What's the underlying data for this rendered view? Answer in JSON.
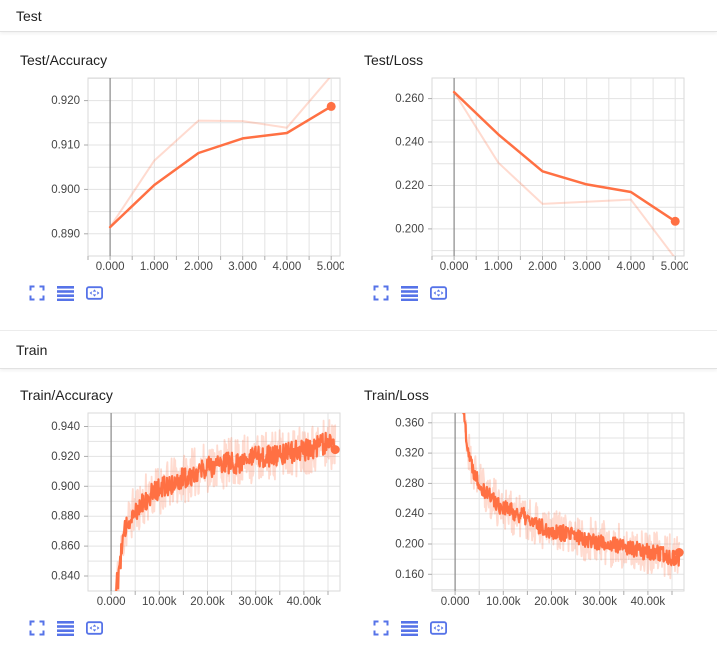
{
  "sections": [
    {
      "label": "Test"
    },
    {
      "label": "Train"
    }
  ],
  "toolbar": {
    "buttons": [
      {
        "icon": "expand-icon"
      },
      {
        "icon": "horizontal-lines-icon"
      },
      {
        "icon": "fit-domain-icon"
      }
    ]
  },
  "colors": {
    "series_orange": "#ff7043",
    "raw_series_opacity": 0.25,
    "icon_blue": "#5673e8",
    "grid": "#e3e3e3",
    "plot_border": "#dadada",
    "zero_line": "#8a8a8a",
    "tick_mark": "#ababab",
    "tick_text": "#454545",
    "title_text": "#212121"
  },
  "chart_data": [
    {
      "id": "test_accuracy",
      "type": "line",
      "title": "Test/Accuracy",
      "xlim": [
        -500,
        5200
      ],
      "ylim": [
        0.885,
        0.9251
      ],
      "x_grid_step": 500,
      "y_grid_step": 0.005,
      "x_ticks": {
        "values": [
          0,
          1000,
          2000,
          3000,
          4000,
          5000
        ],
        "labels": [
          "0.000",
          "1.000",
          "2.000",
          "3.000",
          "4.000",
          "5.000"
        ]
      },
      "y_ticks": {
        "values": [
          0.89,
          0.9,
          0.91,
          0.92
        ],
        "labels": [
          "0.890",
          "0.900",
          "0.910",
          "0.920"
        ]
      },
      "series": [
        {
          "name": "raw",
          "opacity": 0.25,
          "width": 2,
          "points": [
            [
              0,
              0.8915
            ],
            [
              1000,
              0.9065
            ],
            [
              2000,
              0.9155
            ],
            [
              3000,
              0.9154
            ],
            [
              4000,
              0.9139
            ],
            [
              5000,
              0.9256
            ]
          ]
        },
        {
          "name": "smoothed",
          "opacity": 1,
          "width": 2.5,
          "end_marker": true,
          "points": [
            [
              0,
              0.8915
            ],
            [
              1000,
              0.901
            ],
            [
              2000,
              0.9082
            ],
            [
              3000,
              0.9115
            ],
            [
              4000,
              0.9127
            ],
            [
              5000,
              0.9187
            ]
          ]
        }
      ]
    },
    {
      "id": "test_loss",
      "type": "line",
      "title": "Test/Loss",
      "xlim": [
        -500,
        5200
      ],
      "ylim": [
        0.1875,
        0.2695
      ],
      "x_grid_step": 500,
      "y_grid_step": 0.01,
      "x_ticks": {
        "values": [
          0,
          1000,
          2000,
          3000,
          4000,
          5000
        ],
        "labels": [
          "0.000",
          "1.000",
          "2.000",
          "3.000",
          "4.000",
          "5.000"
        ]
      },
      "y_ticks": {
        "values": [
          0.2,
          0.22,
          0.24,
          0.26
        ],
        "labels": [
          "0.200",
          "0.220",
          "0.240",
          "0.260"
        ]
      },
      "series": [
        {
          "name": "raw",
          "opacity": 0.25,
          "width": 2,
          "points": [
            [
              0,
              0.263
            ],
            [
              1000,
              0.2305
            ],
            [
              2000,
              0.2115
            ],
            [
              3000,
              0.2125
            ],
            [
              4000,
              0.2135
            ],
            [
              5000,
              0.1865
            ]
          ]
        },
        {
          "name": "smoothed",
          "opacity": 1,
          "width": 2.5,
          "end_marker": true,
          "points": [
            [
              0,
              0.263
            ],
            [
              1000,
              0.2435
            ],
            [
              2000,
              0.2265
            ],
            [
              3000,
              0.2205
            ],
            [
              4000,
              0.217
            ],
            [
              5000,
              0.2035
            ]
          ]
        }
      ]
    },
    {
      "id": "train_accuracy",
      "type": "line",
      "title": "Train/Accuracy",
      "xlim": [
        -4800,
        47500
      ],
      "ylim": [
        0.83,
        0.949
      ],
      "x_grid_step": 5000,
      "y_grid_step": 0.01,
      "x_ticks": {
        "values": [
          0,
          10000,
          20000,
          30000,
          40000
        ],
        "labels": [
          "0.000",
          "10.00k",
          "20.00k",
          "30.00k",
          "40.00k"
        ]
      },
      "y_ticks": {
        "values": [
          0.84,
          0.86,
          0.88,
          0.9,
          0.92,
          0.94
        ],
        "labels": [
          "0.840",
          "0.860",
          "0.880",
          "0.900",
          "0.920",
          "0.940"
        ]
      },
      "series": [
        {
          "name": "raw",
          "opacity": 0.25,
          "width": 1.8,
          "gen": {
            "x_start": 900,
            "x_end": 46500,
            "n": 420,
            "noise": 0.017,
            "seed": 11,
            "base": [
              [
                900,
                0.83
              ],
              [
                1500,
                0.84
              ],
              [
                2500,
                0.865
              ],
              [
                3500,
                0.877
              ],
              [
                4500,
                0.882
              ],
              [
                6000,
                0.888
              ],
              [
                8000,
                0.894
              ],
              [
                10000,
                0.898
              ],
              [
                12000,
                0.901
              ],
              [
                14000,
                0.904
              ],
              [
                16000,
                0.907
              ],
              [
                18000,
                0.91
              ],
              [
                20000,
                0.913
              ],
              [
                23000,
                0.915
              ],
              [
                26000,
                0.916
              ],
              [
                30000,
                0.919
              ],
              [
                34000,
                0.921
              ],
              [
                38000,
                0.923
              ],
              [
                42000,
                0.926
              ],
              [
                45000,
                0.929
              ],
              [
                46500,
                0.927
              ]
            ]
          }
        },
        {
          "name": "smoothed",
          "opacity": 1,
          "width": 2.2,
          "end_marker": true,
          "gen": {
            "x_start": 900,
            "x_end": 46500,
            "n": 420,
            "noise": 0.0075,
            "seed": 12,
            "base": [
              [
                900,
                0.83
              ],
              [
                1500,
                0.84
              ],
              [
                2500,
                0.865
              ],
              [
                3500,
                0.877
              ],
              [
                4500,
                0.882
              ],
              [
                6000,
                0.888
              ],
              [
                8000,
                0.894
              ],
              [
                10000,
                0.898
              ],
              [
                12000,
                0.901
              ],
              [
                14000,
                0.904
              ],
              [
                16000,
                0.907
              ],
              [
                18000,
                0.91
              ],
              [
                20000,
                0.913
              ],
              [
                23000,
                0.915
              ],
              [
                26000,
                0.916
              ],
              [
                30000,
                0.919
              ],
              [
                34000,
                0.921
              ],
              [
                38000,
                0.923
              ],
              [
                42000,
                0.926
              ],
              [
                45000,
                0.929
              ],
              [
                46500,
                0.927
              ]
            ]
          }
        }
      ]
    },
    {
      "id": "train_loss",
      "type": "line",
      "title": "Train/Loss",
      "xlim": [
        -4800,
        47500
      ],
      "ylim": [
        0.138,
        0.373
      ],
      "x_grid_step": 5000,
      "y_grid_step": 0.02,
      "x_ticks": {
        "values": [
          0,
          10000,
          20000,
          30000,
          40000
        ],
        "labels": [
          "0.000",
          "10.00k",
          "20.00k",
          "30.00k",
          "40.00k"
        ]
      },
      "y_ticks": {
        "values": [
          0.16,
          0.2,
          0.24,
          0.28,
          0.32,
          0.36
        ],
        "labels": [
          "0.160",
          "0.200",
          "0.240",
          "0.280",
          "0.320",
          "0.360"
        ]
      },
      "series": [
        {
          "name": "raw",
          "opacity": 0.25,
          "width": 1.8,
          "gen": {
            "x_start": 1300,
            "x_end": 46500,
            "n": 420,
            "noise": 0.03,
            "seed": 21,
            "base": [
              [
                1300,
                0.4
              ],
              [
                2000,
                0.36
              ],
              [
                2600,
                0.33
              ],
              [
                3200,
                0.31
              ],
              [
                4000,
                0.295
              ],
              [
                5000,
                0.282
              ],
              [
                6000,
                0.272
              ],
              [
                7500,
                0.262
              ],
              [
                9000,
                0.252
              ],
              [
                10000,
                0.248
              ],
              [
                12000,
                0.242
              ],
              [
                14000,
                0.238
              ],
              [
                16000,
                0.228
              ],
              [
                18000,
                0.222
              ],
              [
                20000,
                0.218
              ],
              [
                22000,
                0.215
              ],
              [
                25000,
                0.21
              ],
              [
                28000,
                0.206
              ],
              [
                30000,
                0.202
              ],
              [
                32000,
                0.2
              ],
              [
                35000,
                0.196
              ],
              [
                38000,
                0.192
              ],
              [
                40000,
                0.189
              ],
              [
                42000,
                0.187
              ],
              [
                44000,
                0.184
              ],
              [
                46500,
                0.181
              ]
            ]
          }
        },
        {
          "name": "smoothed",
          "opacity": 1,
          "width": 2.2,
          "end_marker": true,
          "gen": {
            "x_start": 1300,
            "x_end": 46500,
            "n": 420,
            "noise": 0.011,
            "seed": 22,
            "base": [
              [
                1300,
                0.4
              ],
              [
                2000,
                0.36
              ],
              [
                2600,
                0.33
              ],
              [
                3200,
                0.31
              ],
              [
                4000,
                0.295
              ],
              [
                5000,
                0.282
              ],
              [
                6000,
                0.272
              ],
              [
                7500,
                0.262
              ],
              [
                9000,
                0.252
              ],
              [
                10000,
                0.248
              ],
              [
                12000,
                0.242
              ],
              [
                14000,
                0.238
              ],
              [
                16000,
                0.228
              ],
              [
                18000,
                0.222
              ],
              [
                20000,
                0.218
              ],
              [
                22000,
                0.215
              ],
              [
                25000,
                0.21
              ],
              [
                28000,
                0.206
              ],
              [
                30000,
                0.202
              ],
              [
                32000,
                0.2
              ],
              [
                35000,
                0.196
              ],
              [
                38000,
                0.192
              ],
              [
                40000,
                0.189
              ],
              [
                42000,
                0.187
              ],
              [
                44000,
                0.184
              ],
              [
                46500,
                0.181
              ]
            ]
          }
        }
      ]
    }
  ]
}
